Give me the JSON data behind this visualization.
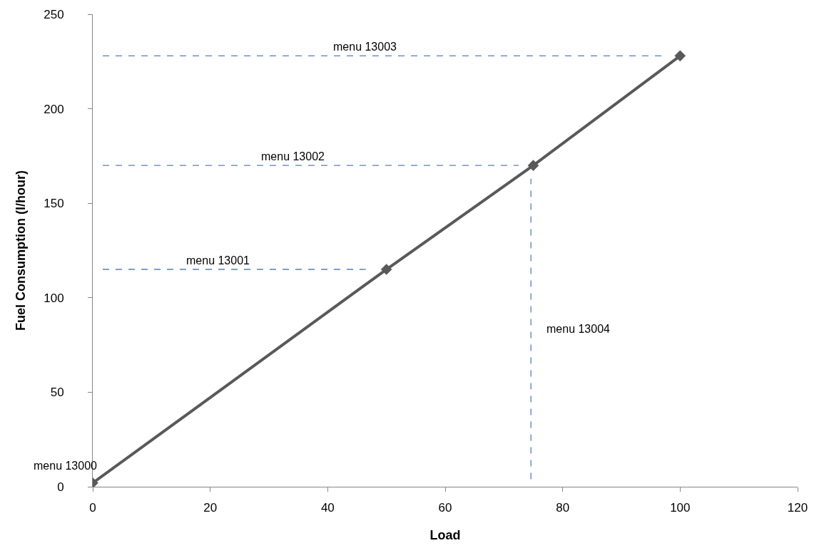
{
  "chart_data": {
    "type": "line",
    "xlabel": "Load",
    "ylabel": "Fuel Consumption (l/hour)",
    "xlim": [
      0,
      120
    ],
    "xticks": [
      0,
      20,
      40,
      60,
      80,
      100,
      120
    ],
    "ylim": [
      0,
      250
    ],
    "yticks": [
      0,
      50,
      100,
      150,
      200,
      250
    ],
    "grid": false,
    "legend": false,
    "series": [
      {
        "name": "menu 13001",
        "x": [
          1.7,
          47
        ],
        "values": [
          115,
          115
        ],
        "color": "#4f81bd",
        "line_style": "dashed",
        "marker": "none"
      },
      {
        "name": "menu 13002",
        "x": [
          1.7,
          72.5
        ],
        "values": [
          170,
          170
        ],
        "color": "#4f81bd",
        "line_style": "dashed",
        "marker": "none"
      },
      {
        "name": "menu 13003",
        "x": [
          1.7,
          97
        ],
        "values": [
          228,
          228
        ],
        "color": "#4f81bd",
        "line_style": "dashed",
        "marker": "none"
      },
      {
        "name": "menu 13004",
        "x": [
          74.6,
          74.6
        ],
        "values": [
          4,
          163
        ],
        "color": "#4f81bd",
        "line_style": "dashed",
        "marker": "none"
      },
      {
        "x": [
          0,
          50,
          75,
          100
        ],
        "values": [
          2,
          115,
          170,
          228
        ],
        "color": "#595959",
        "line_style": "solid",
        "marker": "diamond"
      }
    ],
    "annotations": [
      {
        "text": "menu 13000",
        "x": 0,
        "y": 2
      }
    ]
  }
}
